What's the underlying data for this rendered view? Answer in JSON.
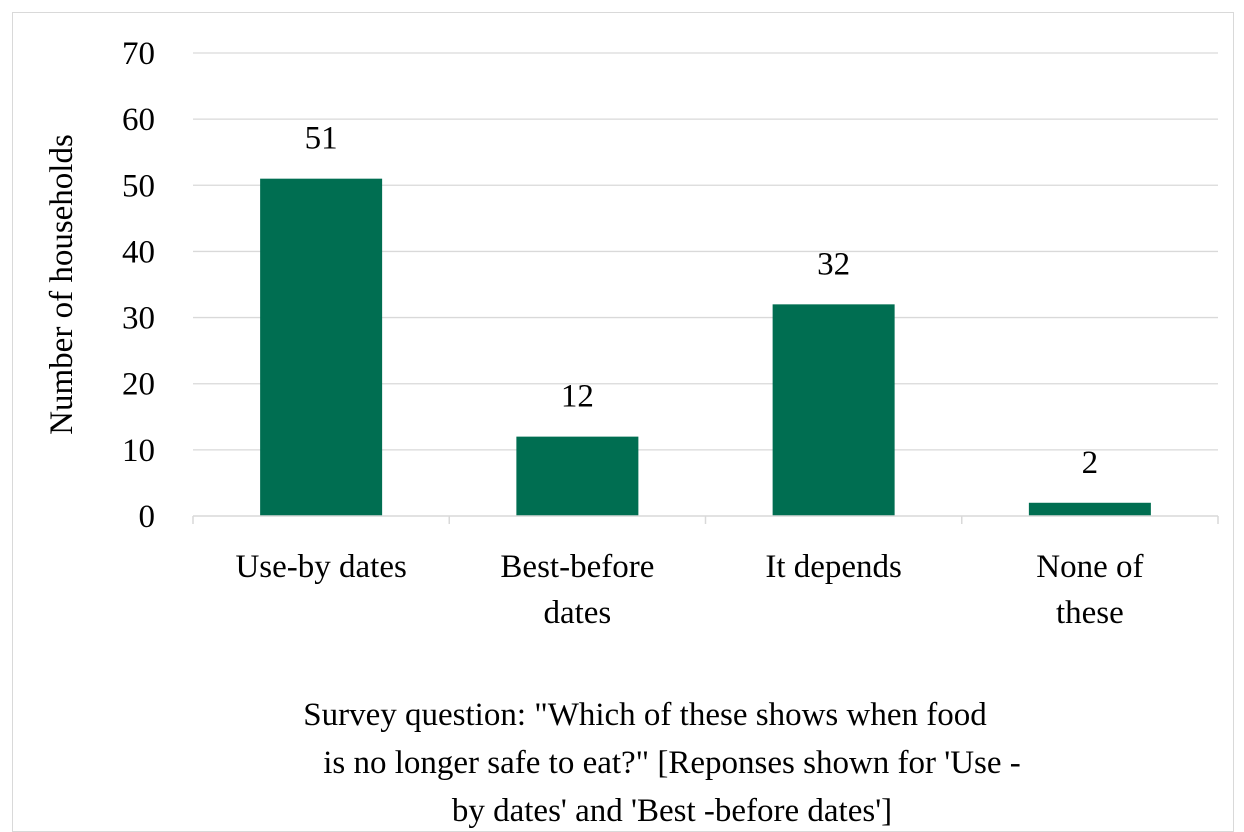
{
  "chart_data": {
    "type": "bar",
    "categories": [
      [
        "Use-by dates"
      ],
      [
        "Best-before",
        "dates"
      ],
      [
        "It depends"
      ],
      [
        "None of",
        "these"
      ]
    ],
    "values": [
      51,
      12,
      32,
      2
    ],
    "data_labels": [
      "51",
      "12",
      "32",
      "2"
    ],
    "title": "",
    "ylabel": "Number of households",
    "xlabel_lines": [
      "Survey question: \"Which of these shows when food",
      "is no longer safe to eat?\" [Reponses shown for 'Use          -",
      "by dates' and 'Best    -before dates']"
    ],
    "ylim": [
      0,
      70
    ],
    "yticks": [
      0,
      10,
      20,
      30,
      40,
      50,
      60,
      70
    ],
    "grid": true,
    "legend": "none",
    "colors": {
      "bar": "#006e51",
      "grid": "#d9d9d9",
      "axis": "#d9d9d9",
      "text": "#000000"
    }
  }
}
